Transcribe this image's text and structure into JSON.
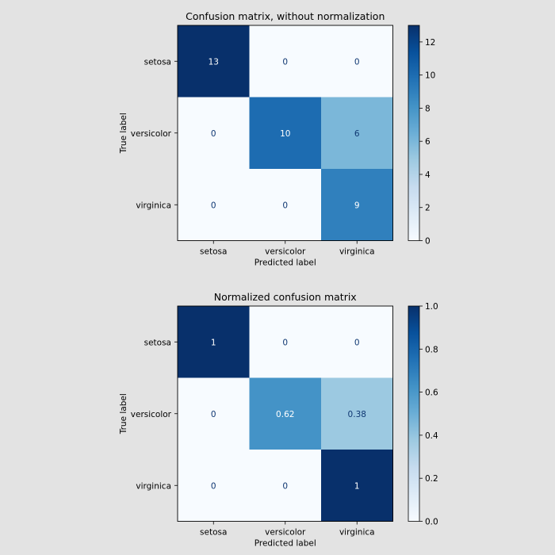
{
  "chart_data": [
    {
      "type": "heatmap",
      "title": "Confusion matrix, without normalization",
      "xlabel": "Predicted label",
      "ylabel": "True label",
      "row_labels": [
        "setosa",
        "versicolor",
        "virginica"
      ],
      "col_labels": [
        "setosa",
        "versicolor",
        "virginica"
      ],
      "values": [
        [
          13,
          0,
          0
        ],
        [
          0,
          10,
          6
        ],
        [
          0,
          0,
          9
        ]
      ],
      "cell_text": [
        [
          "13",
          "0",
          "0"
        ],
        [
          "0",
          "10",
          "6"
        ],
        [
          "0",
          "0",
          "9"
        ]
      ],
      "vmin": 0,
      "vmax": 13,
      "colorbar_ticks": [
        0,
        2,
        4,
        6,
        8,
        10,
        12
      ],
      "colorbar_tick_labels": [
        "0",
        "2",
        "4",
        "6",
        "8",
        "10",
        "12"
      ]
    },
    {
      "type": "heatmap",
      "title": "Normalized confusion matrix",
      "xlabel": "Predicted label",
      "ylabel": "True label",
      "row_labels": [
        "setosa",
        "versicolor",
        "virginica"
      ],
      "col_labels": [
        "setosa",
        "versicolor",
        "virginica"
      ],
      "values": [
        [
          1.0,
          0.0,
          0.0
        ],
        [
          0.0,
          0.62,
          0.38
        ],
        [
          0.0,
          0.0,
          1.0
        ]
      ],
      "cell_text": [
        [
          "1",
          "0",
          "0"
        ],
        [
          "0",
          "0.62",
          "0.38"
        ],
        [
          "0",
          "0",
          "1"
        ]
      ],
      "vmin": 0,
      "vmax": 1,
      "colorbar_ticks": [
        0,
        0.2,
        0.4,
        0.6,
        0.8,
        1.0
      ],
      "colorbar_tick_labels": [
        "0.0",
        "0.2",
        "0.4",
        "0.6",
        "0.8",
        "1.0"
      ]
    }
  ],
  "colors": {
    "cmap": [
      "#f7fbff",
      "#deebf7",
      "#c6dbef",
      "#9ecae1",
      "#6baed6",
      "#4292c6",
      "#2171b5",
      "#08519c",
      "#08306b"
    ],
    "text_dark": "#0f3772",
    "text_light": "#ffffff",
    "axis": "#000000",
    "background": "#e3e3e3"
  }
}
